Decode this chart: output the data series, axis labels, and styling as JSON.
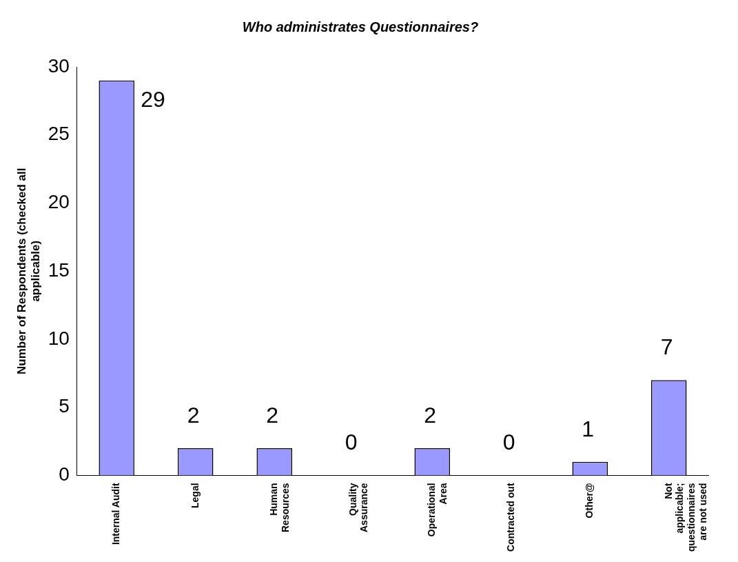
{
  "chart_data": {
    "type": "bar",
    "title": "Who administrates Questionnaires?",
    "ylabel": "Number of Respondents (checked all applicable)",
    "categories": [
      "Internal Audit",
      "Legal",
      "Human Resources",
      "Quality Assurance",
      "Operational Area",
      "Contracted out",
      "Other@",
      "Not applicable; questionnaires are not used"
    ],
    "values": [
      29,
      2,
      2,
      0,
      2,
      0,
      1,
      7
    ],
    "color": "#9999ff",
    "ylim": [
      0,
      30
    ],
    "yticks": [
      0,
      5,
      10,
      15,
      20,
      25,
      30
    ],
    "grid": false,
    "data_labels": true,
    "legend": false
  }
}
